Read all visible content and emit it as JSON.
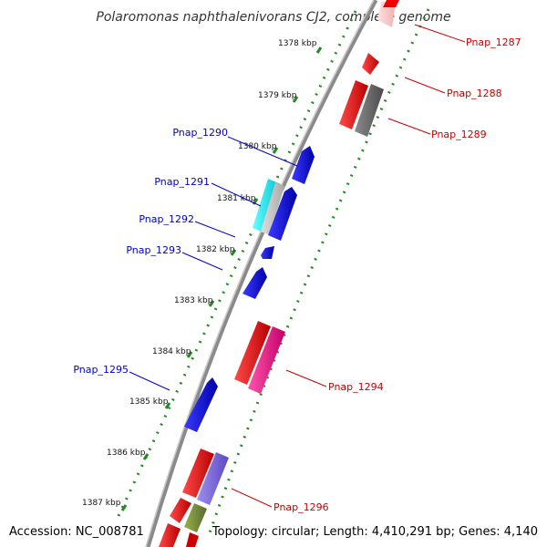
{
  "title": "Polaromonas naphthalenivorans CJ2, complete genome",
  "kbp_ticks": [
    "1378 kbp",
    "1379 kbp",
    "1380 kbp",
    "1381 kbp",
    "1382 kbp",
    "1383 kbp",
    "1384 kbp",
    "1385 kbp",
    "1386 kbp",
    "1387 kbp"
  ],
  "genes_left": [
    "Pnap_1290",
    "Pnap_1291",
    "Pnap_1292",
    "Pnap_1293",
    "Pnap_1295"
  ],
  "genes_right": [
    "Pnap_1287",
    "Pnap_1288",
    "Pnap_1289",
    "Pnap_1294",
    "Pnap_1296"
  ],
  "footer": {
    "accession": "Accession: NC_008781",
    "topology": "Topology: circular; Length: 4,410,291 bp; Genes: 4,140"
  },
  "colors": {
    "label_left": "#0000cc",
    "label_right": "#cc0000",
    "tick_dots": "#228b22",
    "backbone": "#8a8a8a"
  }
}
